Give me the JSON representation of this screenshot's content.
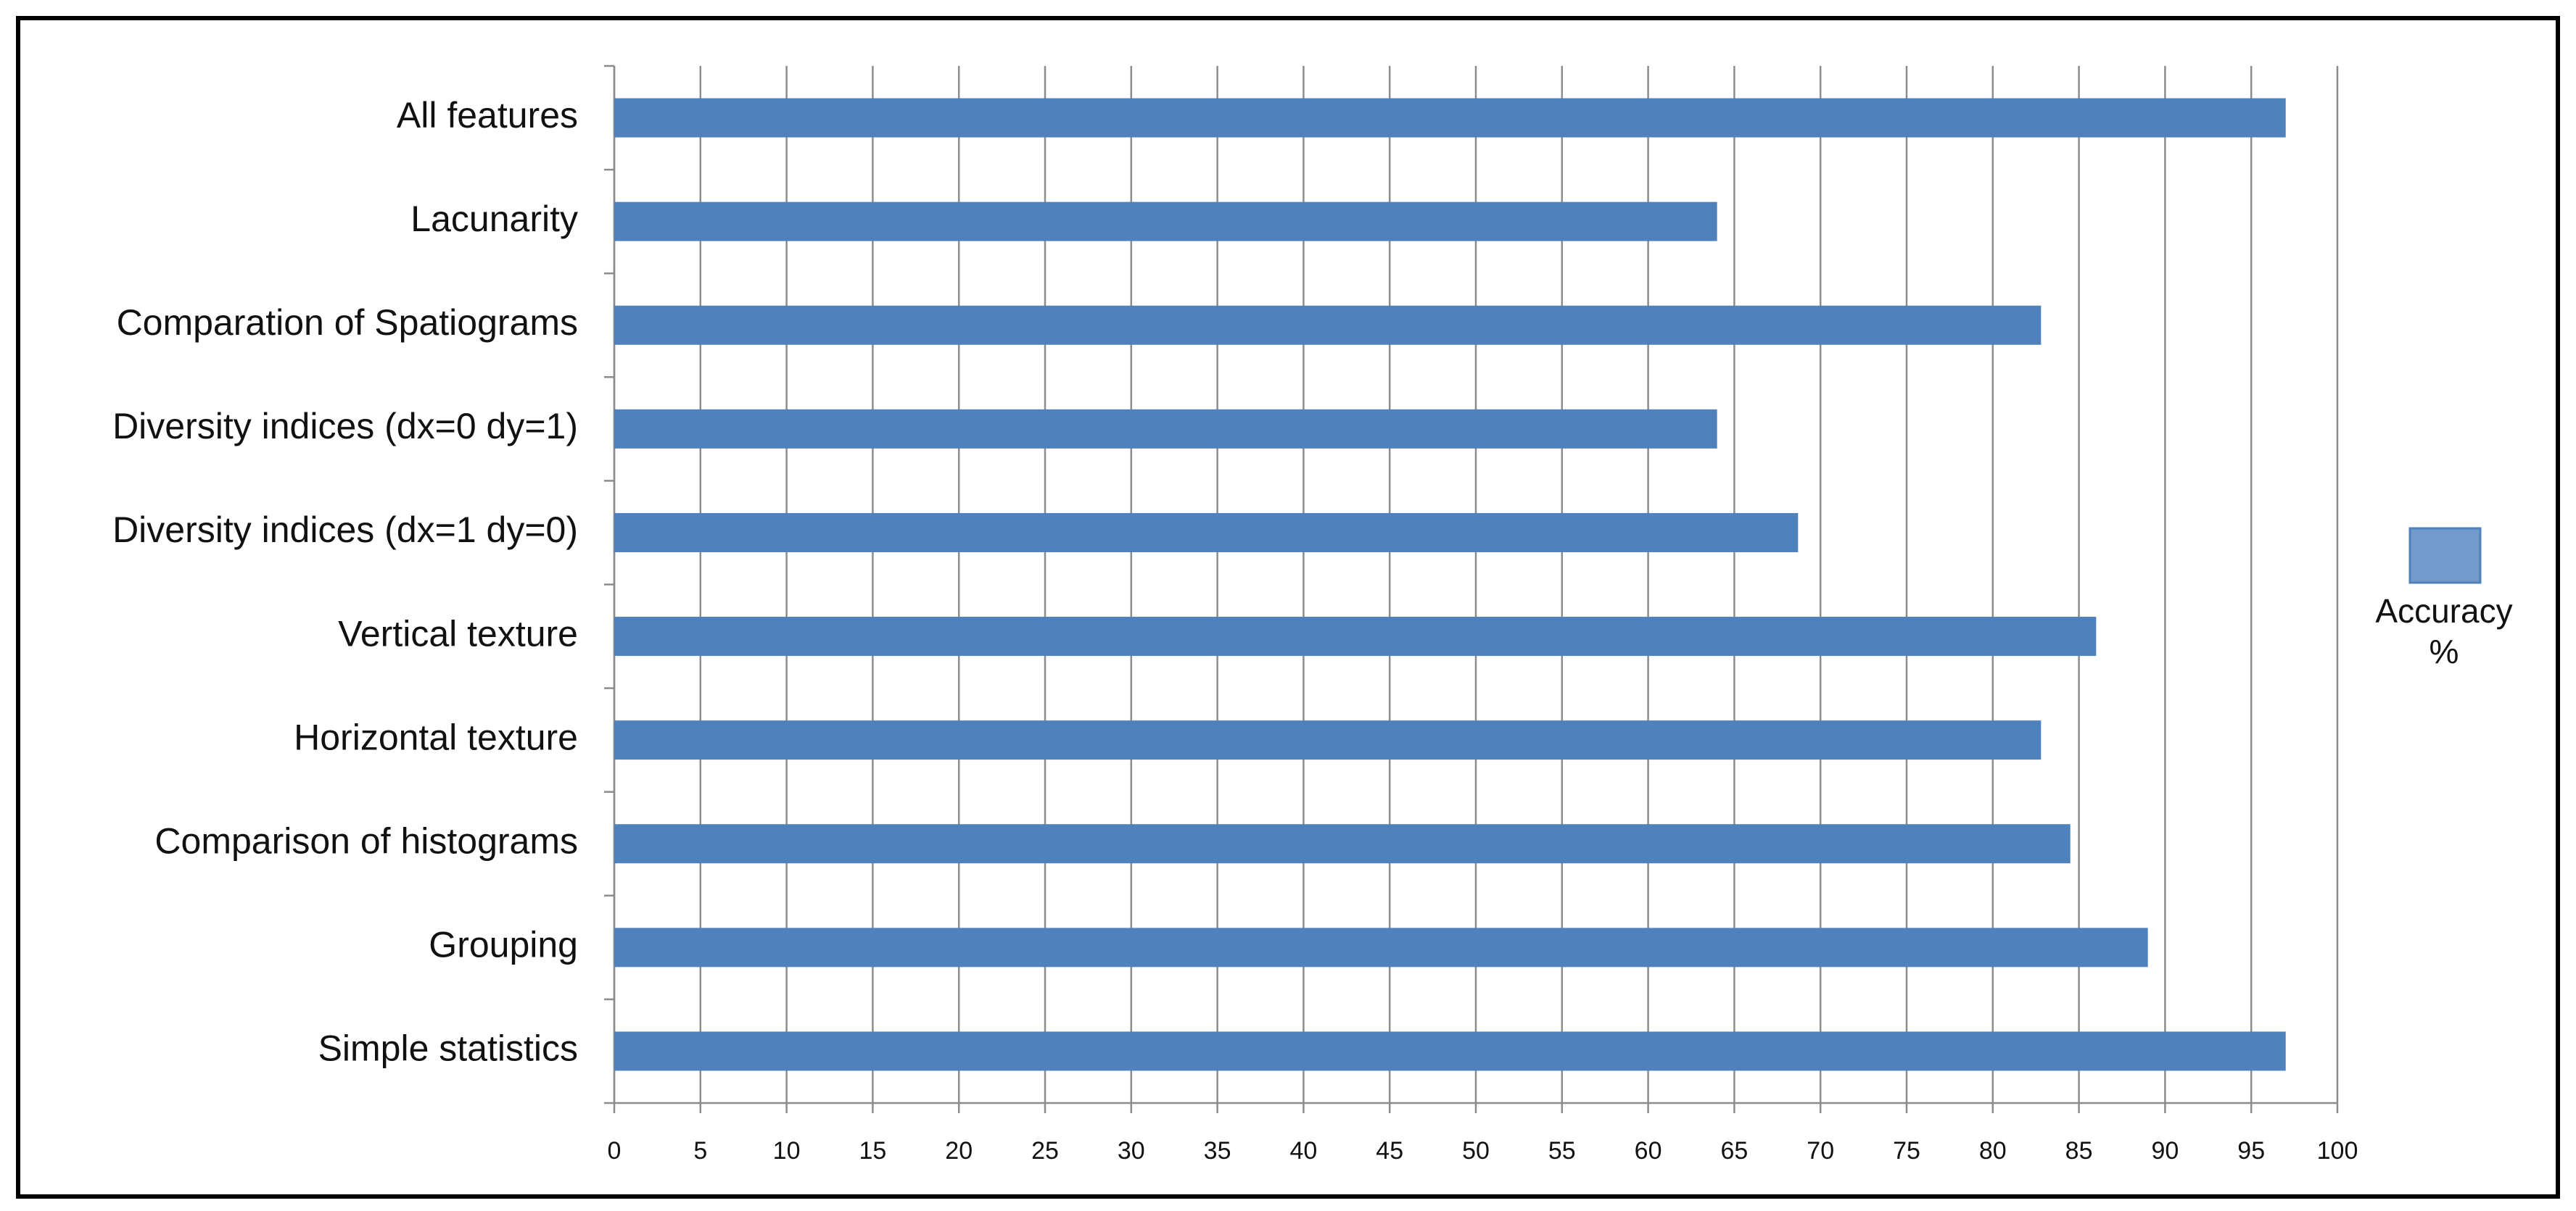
{
  "chart_data": {
    "type": "bar",
    "orientation": "horizontal",
    "categories": [
      "All features",
      "Lacunarity",
      "Comparation of Spatiograms",
      "Diversity indices (dx=0 dy=1)",
      "Diversity indices (dx=1 dy=0)",
      "Vertical texture",
      "Horizontal texture",
      "Comparison of histograms",
      "Grouping",
      "Simple statistics"
    ],
    "series": [
      {
        "name": "Accuracy %",
        "color": "#4f81bd",
        "values": [
          97,
          64,
          82.8,
          64,
          68.7,
          86,
          82.8,
          84.5,
          89,
          97
        ]
      }
    ],
    "xlim": [
      0,
      100
    ],
    "xticks": [
      0,
      5,
      10,
      15,
      20,
      25,
      30,
      35,
      40,
      45,
      50,
      55,
      60,
      65,
      70,
      75,
      80,
      85,
      90,
      95,
      100
    ],
    "grid": true,
    "legend": "right"
  }
}
